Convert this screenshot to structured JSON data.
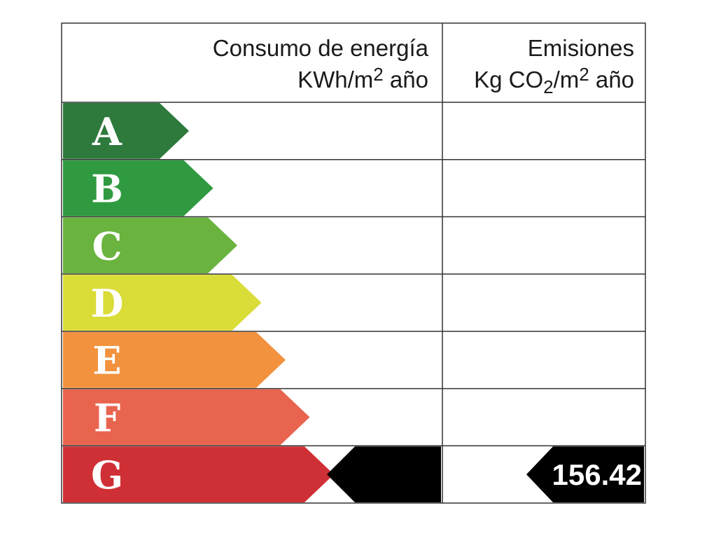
{
  "header": {
    "consumption": {
      "title": "Consumo de energía",
      "unit": [
        "KWh/m",
        "2",
        " año"
      ]
    },
    "emissions": {
      "title": "Emisiones",
      "unit": [
        "Kg CO",
        "2",
        "/m",
        "2",
        " año"
      ]
    }
  },
  "ratings": [
    {
      "letter": "A",
      "color": "#2e7a3c"
    },
    {
      "letter": "B",
      "color": "#2f9a40"
    },
    {
      "letter": "C",
      "color": "#6ab33e"
    },
    {
      "letter": "D",
      "color": "#dadc38"
    },
    {
      "letter": "E",
      "color": "#f2923e"
    },
    {
      "letter": "F",
      "color": "#e9644f"
    },
    {
      "letter": "G",
      "color": "#cf3035"
    }
  ],
  "consumption_indicator": {
    "rating": "G"
  },
  "emissions_indicator": {
    "rating": "G",
    "value": "156.42"
  }
}
